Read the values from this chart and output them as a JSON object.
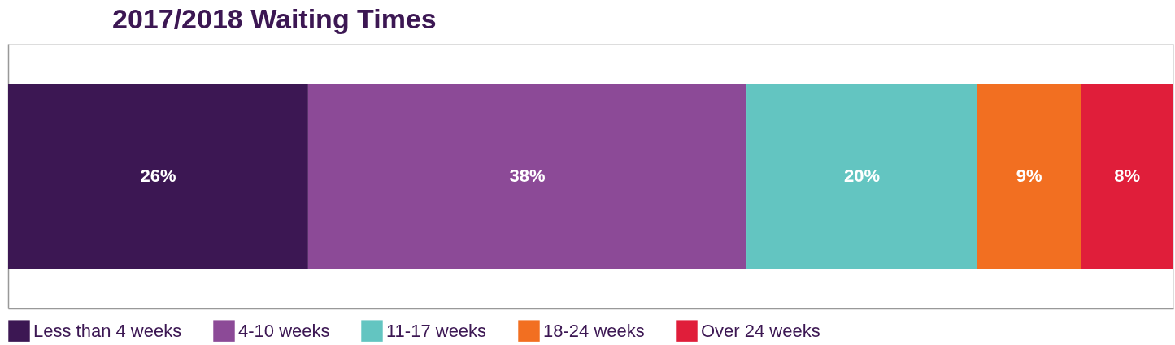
{
  "chart_data": {
    "type": "bar",
    "orientation": "horizontal",
    "stacked": true,
    "title": "2017/2018 Waiting Times",
    "categories": [
      null
    ],
    "series": [
      {
        "name": "Less than 4 weeks",
        "color": "#3c1753",
        "values": [
          26
        ],
        "value_labels": [
          "26%"
        ]
      },
      {
        "name": "4-10 weeks",
        "color": "#8c4a97",
        "values": [
          38
        ],
        "value_labels": [
          "38%"
        ]
      },
      {
        "name": "11-17 weeks",
        "color": "#63c5c1",
        "values": [
          20
        ],
        "value_labels": [
          "20%"
        ]
      },
      {
        "name": "18-24 weeks",
        "color": "#f26f21",
        "values": [
          9
        ],
        "value_labels": [
          "9%"
        ]
      },
      {
        "name": "Over 24 weeks",
        "color": "#e01e3a",
        "values": [
          8
        ],
        "value_labels": [
          "8%"
        ]
      }
    ],
    "xlim": [
      0,
      101
    ],
    "tick_labels": false,
    "legend": "bottom"
  }
}
